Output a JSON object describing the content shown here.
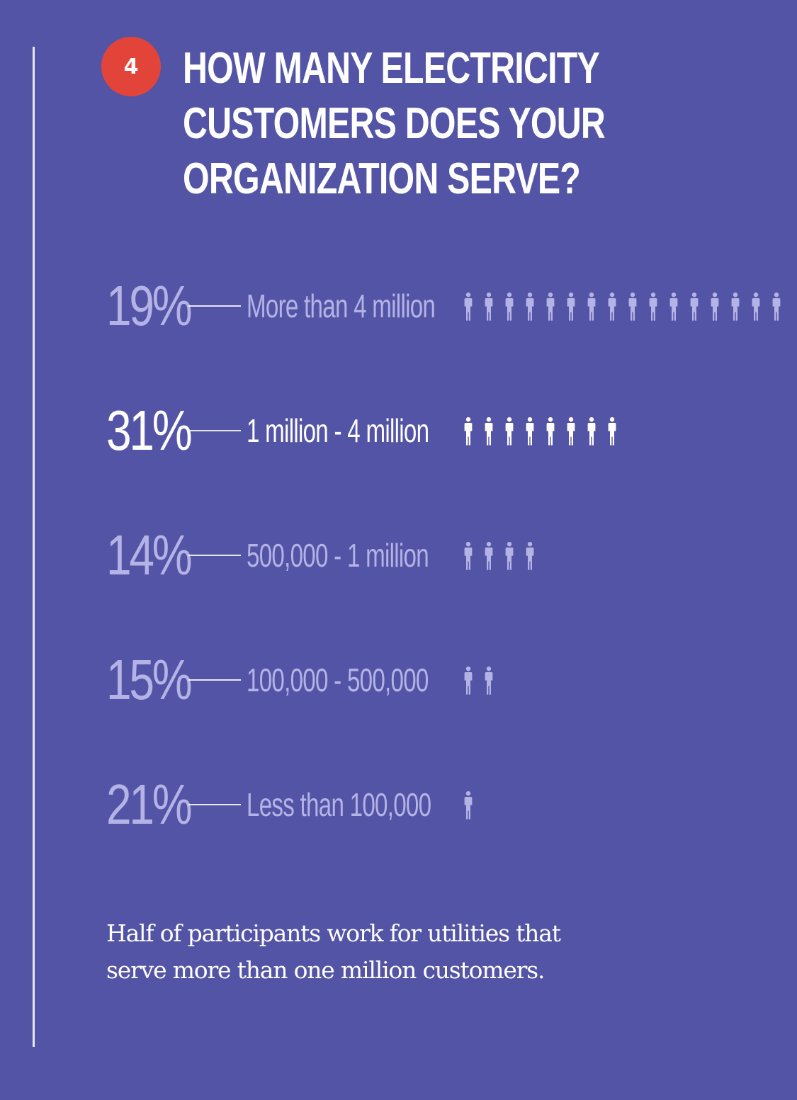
{
  "question": {
    "number": "4",
    "title_lines": [
      "HOW MANY ELECTRICITY",
      "CUSTOMERS DOES YOUR",
      "ORGANIZATION SERVE?"
    ]
  },
  "colors": {
    "background": "#5354a5",
    "badge": "#e3443a",
    "muted_text": "#b3b3e6",
    "highlight_text": "#ffffff"
  },
  "chart_data": {
    "type": "bar",
    "categories": [
      "More than 4 million",
      "1 million - 4 million",
      "500,000 - 1 million",
      "100,000 - 500,000",
      "Less than 100,000"
    ],
    "values": [
      19,
      31,
      14,
      15,
      21
    ],
    "value_labels": [
      "19%",
      "31%",
      "14%",
      "15%",
      "21%"
    ],
    "icon_counts": [
      16,
      8,
      4,
      2,
      1
    ],
    "highlighted": [
      false,
      true,
      false,
      false,
      false
    ],
    "icon": "person-icon"
  },
  "footnote": "Half of participants work for utilities that serve more than one million customers."
}
